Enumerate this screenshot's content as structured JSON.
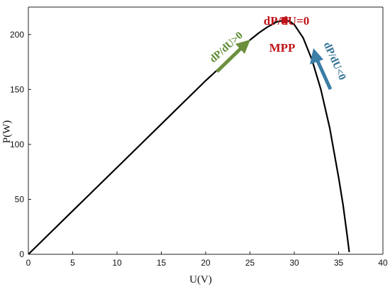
{
  "chart_data": {
    "type": "line",
    "xlabel": "U(V)",
    "ylabel": "P(W)",
    "xlim": [
      0,
      40
    ],
    "ylim": [
      0,
      225
    ],
    "xticks": [
      0,
      5,
      10,
      15,
      20,
      25,
      30,
      35,
      40
    ],
    "yticks": [
      0,
      50,
      100,
      150,
      200
    ],
    "grid": false,
    "series": [
      {
        "color": "#000000",
        "x": [
          0,
          5,
          10,
          15,
          20,
          25,
          26,
          27,
          28,
          28.9,
          29.5,
          30,
          31,
          32,
          33,
          34,
          35,
          35.5,
          36,
          36.2
        ],
        "y": [
          0,
          39.5,
          79,
          118.5,
          158,
          195,
          201.5,
          207,
          211.5,
          213,
          212,
          209,
          197,
          177,
          150,
          115,
          70,
          45,
          15,
          2
        ]
      }
    ],
    "mpp": {
      "x": 28.9,
      "y": 213,
      "color": "#c0141a"
    },
    "annotations": {
      "mpp_condition": "dP/dU=0",
      "mpp_label": "MPP",
      "left_slope": "dP/dU>0",
      "right_slope": "dP/dU<0"
    },
    "colors": {
      "left_arrow": "#6b8f3c",
      "right_arrow": "#3b7ea6"
    }
  }
}
